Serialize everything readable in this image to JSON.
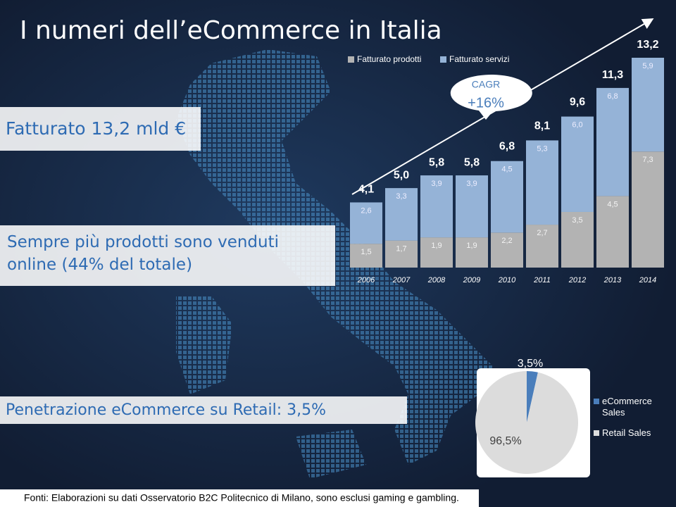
{
  "title": "I numeri dell’eCommerce in Italia",
  "callouts": {
    "revenue": "Fatturato 13,2 mld €",
    "products": "Sempre più prodotti sono venduti online (44% del totale)",
    "penetration": "Penetrazione eCommerce su Retail: 3,5%"
  },
  "footer": "Fonti: Elaborazioni su dati Osservatorio B2C Politecnico di Milano, sono esclusi gaming e gambling.",
  "chart_data": [
    {
      "type": "bar",
      "stacked": true,
      "categories": [
        "2006",
        "2007",
        "2008",
        "2009",
        "2010",
        "2011",
        "2012",
        "2013",
        "2014"
      ],
      "series": [
        {
          "name": "Fatturato prodotti",
          "color": "#b3b3b3",
          "values": [
            1.5,
            1.7,
            1.9,
            1.9,
            2.2,
            2.7,
            3.5,
            4.5,
            7.3
          ],
          "value_labels": [
            "1,5",
            "1,7",
            "1,9",
            "1,9",
            "2,2",
            "2,7",
            "3,5",
            "4,5",
            "7,3"
          ]
        },
        {
          "name": "Fatturato servizi",
          "color": "#95b3d7",
          "values": [
            2.6,
            3.3,
            3.9,
            3.9,
            4.5,
            5.3,
            6.0,
            6.8,
            5.9
          ],
          "value_labels": [
            "2,6",
            "3,3",
            "3,9",
            "3,9",
            "4,5",
            "5,3",
            "6,0",
            "6,8",
            "5,9"
          ]
        }
      ],
      "totals": [
        4.1,
        5.0,
        5.8,
        5.8,
        6.8,
        8.1,
        9.6,
        11.3,
        13.2
      ],
      "total_labels": [
        "4,1",
        "5,0",
        "5,8",
        "5,8",
        "6,8",
        "8,1",
        "9,6",
        "11,3",
        "13,2"
      ],
      "annotations": [
        "CAGR",
        "+16%"
      ]
    },
    {
      "type": "pie",
      "categories": [
        "eCommerce Sales",
        "Retail Sales"
      ],
      "values": [
        3.5,
        96.5
      ],
      "value_labels": [
        "3,5%",
        "96,5%"
      ],
      "colors": [
        "#4a7ebb",
        "#dcdcdc"
      ]
    }
  ]
}
